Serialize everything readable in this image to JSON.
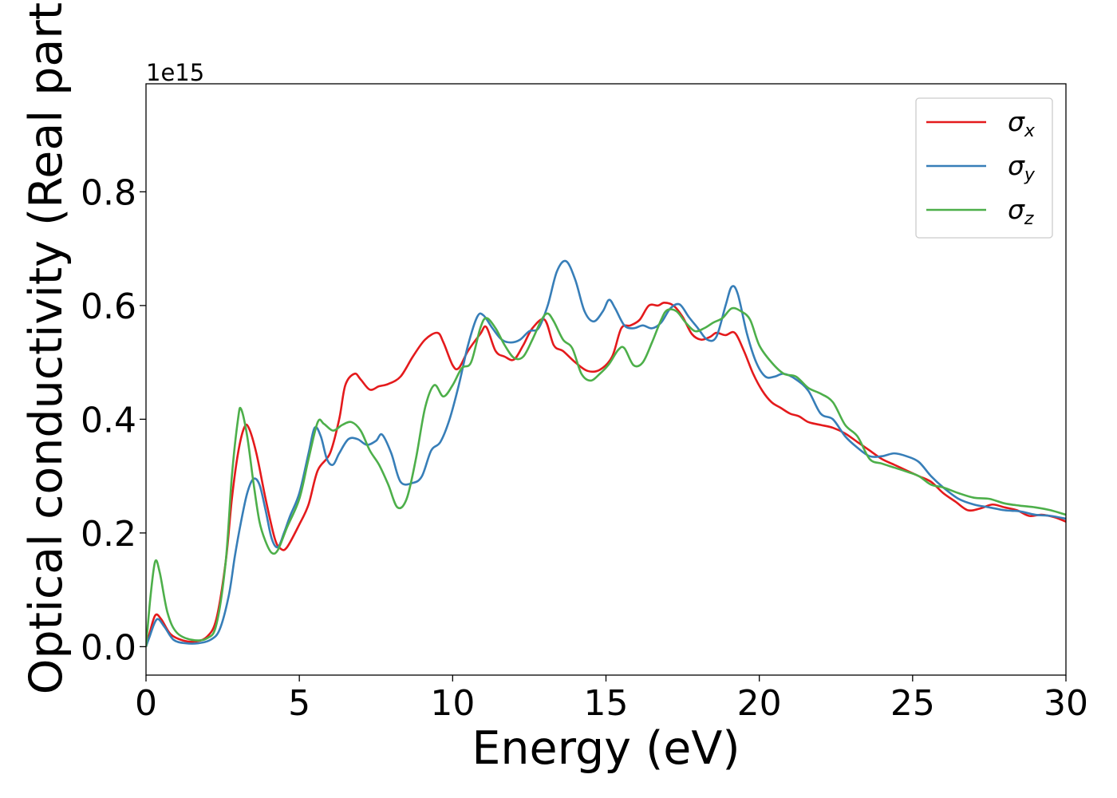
{
  "chart_data": {
    "type": "line",
    "title": "",
    "xlabel": "Energy (eV)",
    "ylabel": "Optical conductivity (Real part)",
    "y_offset_text": "1e15",
    "xlim": [
      0,
      30
    ],
    "ylim": [
      -0.05,
      0.99
    ],
    "xticks": [
      0,
      5,
      10,
      15,
      20,
      25,
      30
    ],
    "xtick_labels": [
      "0",
      "5",
      "10",
      "15",
      "20",
      "25",
      "30"
    ],
    "yticks": [
      0.0,
      0.2,
      0.4,
      0.6,
      0.8
    ],
    "ytick_labels": [
      "0.0",
      "0.2",
      "0.4",
      "0.6",
      "0.8"
    ],
    "grid": false,
    "legend_position": "top-right",
    "series": [
      {
        "name": "σx",
        "symbol": "σ",
        "subscript": "x",
        "color": "#e41a1c",
        "x": [
          0,
          0.1,
          0.3,
          0.5,
          0.8,
          1.2,
          1.6,
          2.0,
          2.3,
          2.6,
          2.8,
          3.0,
          3.2,
          3.35,
          3.6,
          3.9,
          4.2,
          4.4,
          4.6,
          5.0,
          5.3,
          5.6,
          6.0,
          6.3,
          6.5,
          6.8,
          7.0,
          7.3,
          7.6,
          7.9,
          8.3,
          8.7,
          9.1,
          9.5,
          9.7,
          10.0,
          10.2,
          10.5,
          10.9,
          11.1,
          11.4,
          11.7,
          12.0,
          12.3,
          12.6,
          13.0,
          13.3,
          13.6,
          14.0,
          14.4,
          14.8,
          15.2,
          15.5,
          15.8,
          16.1,
          16.4,
          16.7,
          16.9,
          17.2,
          17.5,
          17.8,
          18.1,
          18.4,
          18.6,
          18.9,
          19.2,
          19.5,
          19.8,
          20.1,
          20.4,
          20.7,
          21.0,
          21.3,
          21.6,
          22.0,
          22.4,
          22.8,
          23.2,
          23.6,
          24.0,
          24.4,
          24.8,
          25.2,
          25.6,
          26.0,
          26.4,
          26.8,
          27.2,
          27.6,
          28.0,
          28.4,
          28.8,
          29.2,
          29.6,
          30.0
        ],
        "y": [
          0.0,
          0.02,
          0.055,
          0.048,
          0.022,
          0.011,
          0.009,
          0.018,
          0.05,
          0.15,
          0.26,
          0.34,
          0.385,
          0.385,
          0.34,
          0.26,
          0.19,
          0.172,
          0.175,
          0.215,
          0.25,
          0.31,
          0.34,
          0.4,
          0.46,
          0.48,
          0.47,
          0.452,
          0.458,
          0.462,
          0.475,
          0.51,
          0.54,
          0.552,
          0.535,
          0.495,
          0.49,
          0.52,
          0.55,
          0.562,
          0.52,
          0.51,
          0.505,
          0.53,
          0.56,
          0.575,
          0.53,
          0.52,
          0.5,
          0.485,
          0.487,
          0.51,
          0.56,
          0.565,
          0.575,
          0.6,
          0.6,
          0.605,
          0.6,
          0.58,
          0.55,
          0.54,
          0.545,
          0.552,
          0.548,
          0.552,
          0.52,
          0.48,
          0.45,
          0.43,
          0.42,
          0.41,
          0.405,
          0.395,
          0.39,
          0.385,
          0.375,
          0.36,
          0.345,
          0.33,
          0.32,
          0.31,
          0.3,
          0.29,
          0.27,
          0.255,
          0.24,
          0.243,
          0.25,
          0.245,
          0.24,
          0.23,
          0.232,
          0.228,
          0.22
        ]
      },
      {
        "name": "σy",
        "symbol": "σ",
        "subscript": "y",
        "color": "#377eb8",
        "x": [
          0,
          0.1,
          0.35,
          0.6,
          0.9,
          1.3,
          1.7,
          2.1,
          2.4,
          2.7,
          2.9,
          3.1,
          3.3,
          3.5,
          3.7,
          3.9,
          4.1,
          4.3,
          4.5,
          4.7,
          5.0,
          5.3,
          5.5,
          5.7,
          5.9,
          6.1,
          6.3,
          6.6,
          6.9,
          7.2,
          7.5,
          7.7,
          8.0,
          8.3,
          8.7,
          9.0,
          9.3,
          9.6,
          9.9,
          10.2,
          10.5,
          10.8,
          11.0,
          11.3,
          11.6,
          11.9,
          12.2,
          12.5,
          12.8,
          13.1,
          13.4,
          13.7,
          14.0,
          14.3,
          14.6,
          14.9,
          15.1,
          15.3,
          15.6,
          15.9,
          16.2,
          16.5,
          16.8,
          17.1,
          17.4,
          17.7,
          18.0,
          18.3,
          18.6,
          18.9,
          19.1,
          19.3,
          19.6,
          19.9,
          20.2,
          20.5,
          20.8,
          21.2,
          21.6,
          22.0,
          22.4,
          22.8,
          23.2,
          23.6,
          24.0,
          24.4,
          24.8,
          25.2,
          25.6,
          26.0,
          26.5,
          27.0,
          27.5,
          28.0,
          28.5,
          29.0,
          29.5,
          30.0
        ],
        "y": [
          0.0,
          0.015,
          0.048,
          0.035,
          0.012,
          0.006,
          0.006,
          0.012,
          0.03,
          0.09,
          0.16,
          0.22,
          0.27,
          0.295,
          0.285,
          0.24,
          0.19,
          0.175,
          0.2,
          0.23,
          0.27,
          0.34,
          0.385,
          0.37,
          0.33,
          0.32,
          0.34,
          0.365,
          0.365,
          0.355,
          0.362,
          0.373,
          0.34,
          0.29,
          0.288,
          0.3,
          0.345,
          0.36,
          0.4,
          0.46,
          0.53,
          0.58,
          0.583,
          0.56,
          0.54,
          0.535,
          0.54,
          0.555,
          0.56,
          0.6,
          0.66,
          0.678,
          0.645,
          0.59,
          0.572,
          0.59,
          0.61,
          0.595,
          0.565,
          0.56,
          0.565,
          0.56,
          0.57,
          0.595,
          0.602,
          0.58,
          0.56,
          0.54,
          0.545,
          0.6,
          0.633,
          0.62,
          0.55,
          0.5,
          0.475,
          0.475,
          0.48,
          0.47,
          0.45,
          0.41,
          0.4,
          0.37,
          0.35,
          0.335,
          0.335,
          0.34,
          0.335,
          0.325,
          0.3,
          0.28,
          0.26,
          0.25,
          0.245,
          0.24,
          0.238,
          0.232,
          0.23,
          0.225
        ]
      },
      {
        "name": "σz",
        "symbol": "σ",
        "subscript": "z",
        "color": "#4daf4a",
        "x": [
          0,
          0.15,
          0.3,
          0.45,
          0.7,
          1.0,
          1.5,
          2.0,
          2.3,
          2.6,
          2.8,
          3.0,
          3.1,
          3.3,
          3.5,
          3.7,
          3.9,
          4.1,
          4.3,
          4.6,
          5.0,
          5.3,
          5.6,
          5.8,
          6.1,
          6.4,
          6.7,
          7.0,
          7.3,
          7.6,
          7.9,
          8.2,
          8.5,
          8.8,
          9.1,
          9.4,
          9.7,
          10.0,
          10.3,
          10.6,
          10.9,
          11.1,
          11.4,
          11.7,
          12.0,
          12.3,
          12.6,
          12.9,
          13.1,
          13.3,
          13.6,
          13.9,
          14.2,
          14.5,
          14.8,
          15.1,
          15.4,
          15.6,
          15.9,
          16.2,
          16.5,
          16.8,
          17.0,
          17.3,
          17.6,
          17.9,
          18.2,
          18.5,
          18.8,
          19.1,
          19.4,
          19.7,
          20.0,
          20.4,
          20.8,
          21.2,
          21.6,
          22.0,
          22.4,
          22.8,
          23.2,
          23.6,
          24.0,
          24.4,
          24.8,
          25.2,
          25.6,
          26.0,
          26.5,
          27.0,
          27.5,
          28.0,
          28.5,
          29.0,
          29.5,
          30.0
        ],
        "y": [
          0.0,
          0.09,
          0.15,
          0.13,
          0.06,
          0.025,
          0.012,
          0.015,
          0.04,
          0.15,
          0.3,
          0.4,
          0.418,
          0.37,
          0.29,
          0.22,
          0.185,
          0.165,
          0.17,
          0.21,
          0.26,
          0.33,
          0.395,
          0.392,
          0.38,
          0.39,
          0.395,
          0.38,
          0.345,
          0.32,
          0.285,
          0.245,
          0.26,
          0.33,
          0.42,
          0.46,
          0.44,
          0.46,
          0.49,
          0.5,
          0.56,
          0.578,
          0.56,
          0.53,
          0.508,
          0.51,
          0.54,
          0.575,
          0.586,
          0.572,
          0.54,
          0.525,
          0.48,
          0.468,
          0.48,
          0.497,
          0.522,
          0.525,
          0.495,
          0.5,
          0.535,
          0.575,
          0.592,
          0.59,
          0.57,
          0.555,
          0.56,
          0.57,
          0.578,
          0.595,
          0.59,
          0.575,
          0.53,
          0.5,
          0.48,
          0.475,
          0.455,
          0.445,
          0.43,
          0.39,
          0.37,
          0.33,
          0.322,
          0.315,
          0.308,
          0.3,
          0.285,
          0.28,
          0.27,
          0.262,
          0.26,
          0.252,
          0.248,
          0.245,
          0.24,
          0.232
        ]
      }
    ]
  }
}
